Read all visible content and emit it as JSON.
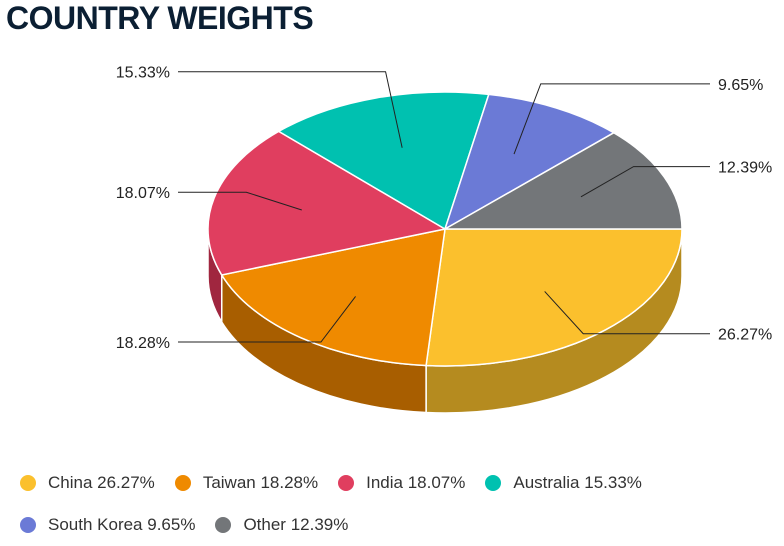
{
  "title": "COUNTRY WEIGHTS",
  "chart_data": {
    "type": "pie",
    "slices": [
      {
        "label": "China",
        "value": 26.27,
        "display": "26.27%",
        "legend": "China 26.27%",
        "color": "#fbc02d",
        "side": "#b58b1f"
      },
      {
        "label": "Taiwan",
        "value": 18.28,
        "display": "18.28%",
        "legend": "Taiwan 18.28%",
        "color": "#ef8a00",
        "side": "#a85e00"
      },
      {
        "label": "India",
        "value": 18.07,
        "display": "18.07%",
        "legend": "India 18.07%",
        "color": "#e03e5f",
        "side": "#a0263f"
      },
      {
        "label": "Australia",
        "value": 15.33,
        "display": "15.33%",
        "legend": "Australia 15.33%",
        "color": "#00c1b0",
        "side": "#00877b"
      },
      {
        "label": "South Korea",
        "value": 9.65,
        "display": "9.65%",
        "legend": "South Korea 9.65%",
        "color": "#6b7ad6",
        "side": "#4a559a"
      },
      {
        "label": "Other",
        "value": 12.39,
        "display": "12.39%",
        "legend": "Other 12.39%",
        "color": "#737679",
        "side": "#4f5254"
      }
    ],
    "legend_position": "bottom"
  }
}
